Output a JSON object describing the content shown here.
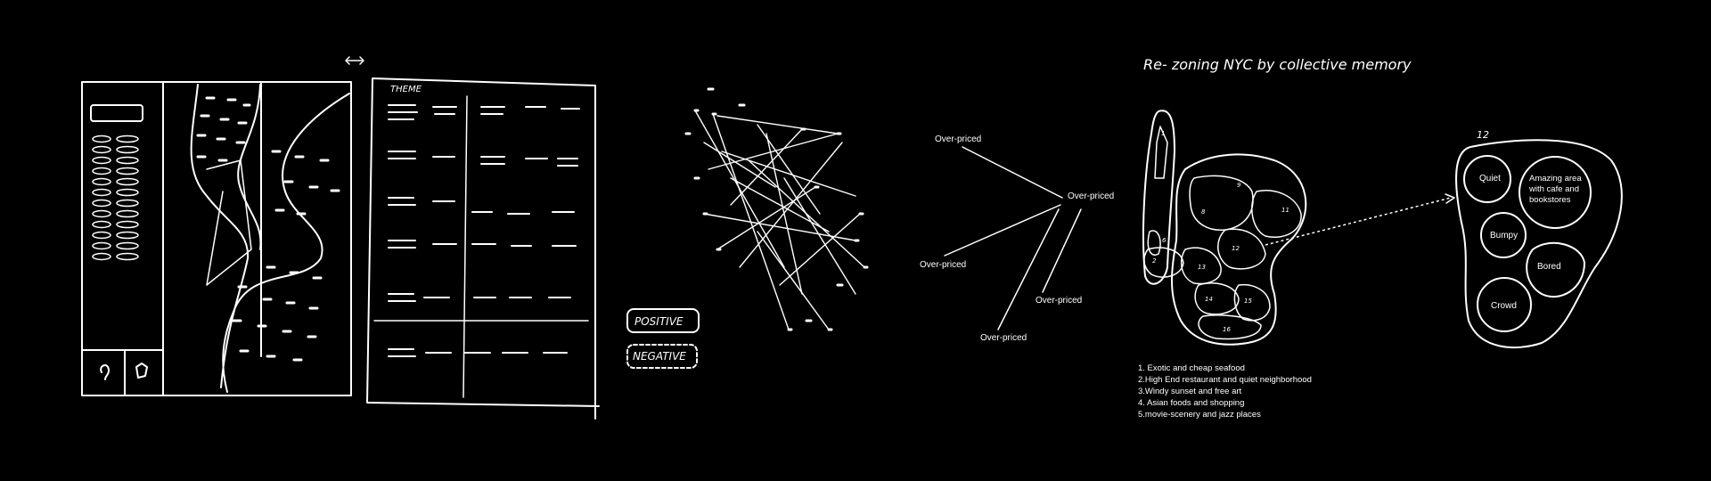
{
  "title": "Re- zoning NYC by collective memory",
  "sketch1": {
    "panel_label": "THEME"
  },
  "buttons": {
    "positive": "POSITIVE",
    "negative": "NEGATIVE"
  },
  "graph": {
    "labels": [
      "Over-priced",
      "Over-priced",
      "Over-priced",
      "Over-priced",
      "Over-priced"
    ]
  },
  "map": {
    "zone_numbers": [
      "1",
      "2",
      "9",
      "8",
      "11",
      "6",
      "12",
      "13",
      "14",
      "15",
      "16"
    ]
  },
  "zone_detail": {
    "number": "12",
    "areas": [
      "Quiet",
      "Amazing area with cafe and bookstores",
      "Bumpy",
      "Bored",
      "Crowd"
    ]
  },
  "memories": [
    "1. Exotic and cheap seafood",
    "2.High End restaurant and quiet neighborhood",
    "3.Windy sunset and free art",
    "4. Asian foods and shopping",
    "5.movie-scenery and jazz places"
  ]
}
